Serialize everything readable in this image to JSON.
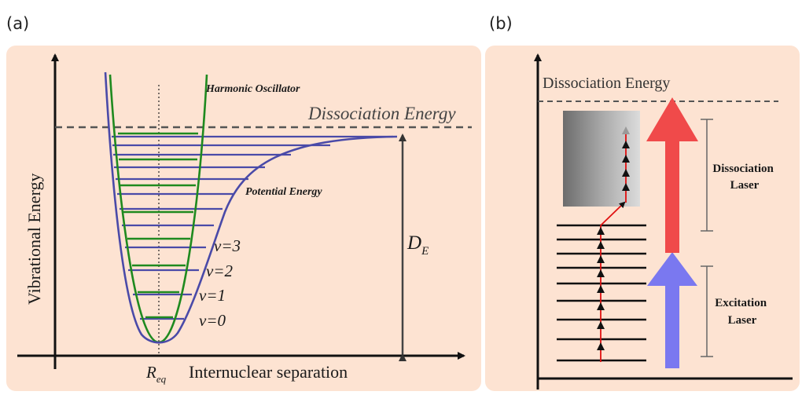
{
  "panel_a": {
    "label": "(a)",
    "y_axis_label": "Vibrational Energy",
    "x_axis_label": "Internuclear separation",
    "req_label": "R",
    "req_subscript": "eq",
    "harmonic_label": "Harmonic Oscillator",
    "potential_label": "Potential Energy",
    "dissociation_label": "Dissociation Energy",
    "de_label": "D",
    "de_subscript": "E",
    "levels": [
      "v=3",
      "v=2",
      "v=1",
      "v=0"
    ]
  },
  "panel_b": {
    "label": "(b)",
    "dissociation_label": "Dissociation Energy",
    "dissociation_laser_line1": "Dissociation",
    "dissociation_laser_line2": "Laser",
    "excitation_laser_line1": "Excitation",
    "excitation_laser_line2": "Laser"
  },
  "colors": {
    "panel_bg": "#fde3d2",
    "morse": "#4a4aa8",
    "harmonic": "#1f8a1f",
    "red_arrow": "#f04a4a",
    "blue_arrow": "#7a78f0",
    "transition": "#e01010"
  }
}
